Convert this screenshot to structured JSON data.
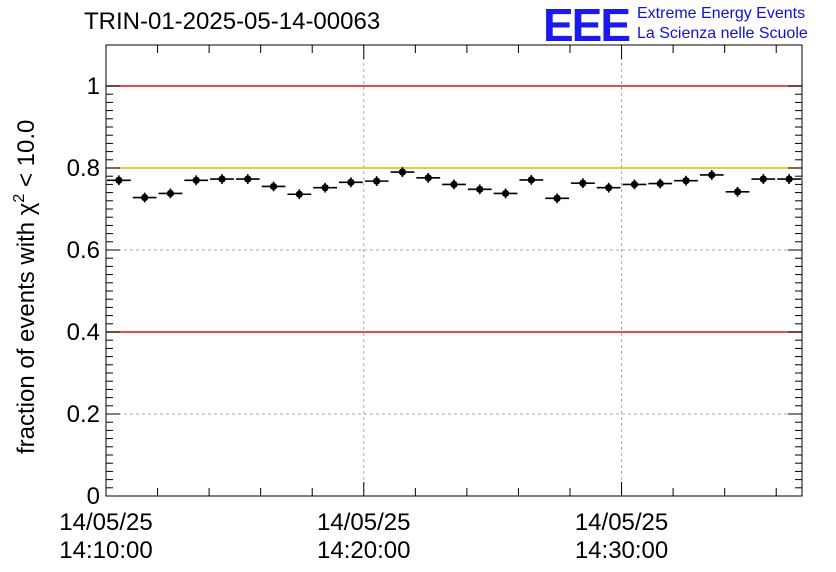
{
  "chart_data": {
    "type": "scatter",
    "title": "TRIN-01-2025-05-14-00063",
    "ylabel_main": "fraction of events with ",
    "ylabel_chi": "χ",
    "ylabel_exp": "2",
    "ylabel_tail": " < 10.0",
    "ylim": [
      0,
      1.1
    ],
    "yticks": [
      "0",
      "0.2",
      "0.4",
      "0.6",
      "0.8",
      "1"
    ],
    "x_minutes_range": [
      0,
      27
    ],
    "xticks": [
      {
        "date": "14/05/25",
        "time": "14:10:00",
        "minute": 0
      },
      {
        "date": "14/05/25",
        "time": "14:20:00",
        "minute": 10
      },
      {
        "date": "14/05/25",
        "time": "14:30:00",
        "minute": 20
      }
    ],
    "bin_width_minutes": 1,
    "values": [
      0.77,
      0.728,
      0.738,
      0.77,
      0.773,
      0.773,
      0.755,
      0.736,
      0.752,
      0.765,
      0.768,
      0.79,
      0.776,
      0.76,
      0.748,
      0.738,
      0.771,
      0.726,
      0.763,
      0.752,
      0.76,
      0.762,
      0.769,
      0.783,
      0.742,
      0.773,
      0.773
    ],
    "error": 0.012,
    "reference_lines": [
      {
        "y": 1.0,
        "color": "#e01010"
      },
      {
        "y": 0.8,
        "color": "#f0b400"
      },
      {
        "y": 0.4,
        "color": "#e01010"
      }
    ]
  },
  "logo": {
    "mark": "EEE",
    "line1": "Extreme Energy Events",
    "line2": "La Scienza nelle Scuole",
    "color": "#1a1aee"
  }
}
